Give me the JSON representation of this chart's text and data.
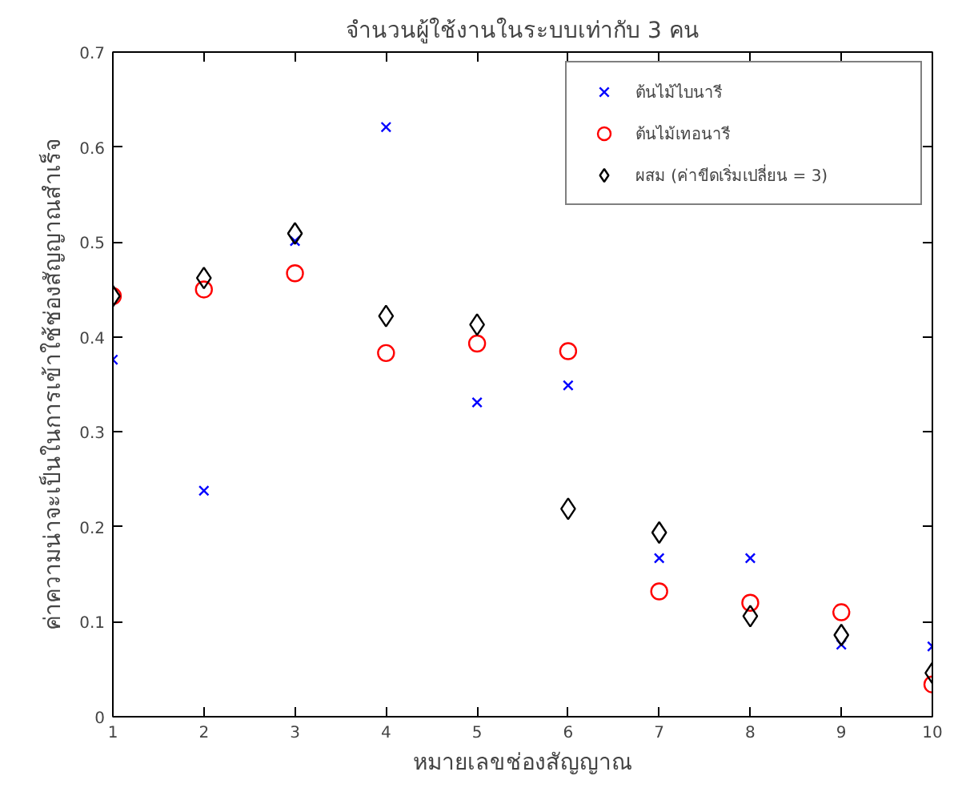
{
  "chart_data": {
    "type": "scatter",
    "title": "จำนวนผู้ใช้งานในระบบเท่ากับ 3 คน",
    "xlabel": "หมายเลขช่องสัญญาณ",
    "ylabel": "ค่าความน่าจะเป็นในการเข้าใช้ช่องสัญญาณสำเร็จ",
    "x": [
      1,
      2,
      3,
      4,
      5,
      6,
      7,
      8,
      9,
      10
    ],
    "series": [
      {
        "name": "ต้นไม้ไบนารี",
        "color": "#0000ff",
        "marker": "cross",
        "values": [
          0.376,
          0.238,
          0.501,
          0.621,
          0.331,
          0.349,
          0.167,
          0.167,
          0.076,
          0.074
        ]
      },
      {
        "name": "ต้นไม้เทอนารี",
        "color": "#ff0000",
        "marker": "circle",
        "values": [
          0.443,
          0.45,
          0.467,
          0.383,
          0.393,
          0.385,
          0.132,
          0.12,
          0.11,
          0.034
        ]
      },
      {
        "name": "ผสม (ค่าขีดเริ่มเปลี่ยน = 3)",
        "color": "#000000",
        "marker": "diamond",
        "values": [
          0.443,
          0.462,
          0.509,
          0.422,
          0.413,
          0.219,
          0.194,
          0.106,
          0.086,
          0.046
        ]
      }
    ],
    "xlim": [
      1,
      10
    ],
    "ylim": [
      0,
      0.7
    ],
    "xticks": [
      1,
      2,
      3,
      4,
      5,
      6,
      7,
      8,
      9,
      10
    ],
    "yticks": [
      0,
      0.1,
      0.2,
      0.3,
      0.4,
      0.5,
      0.6,
      0.7
    ],
    "grid": false,
    "legend": "top right"
  }
}
